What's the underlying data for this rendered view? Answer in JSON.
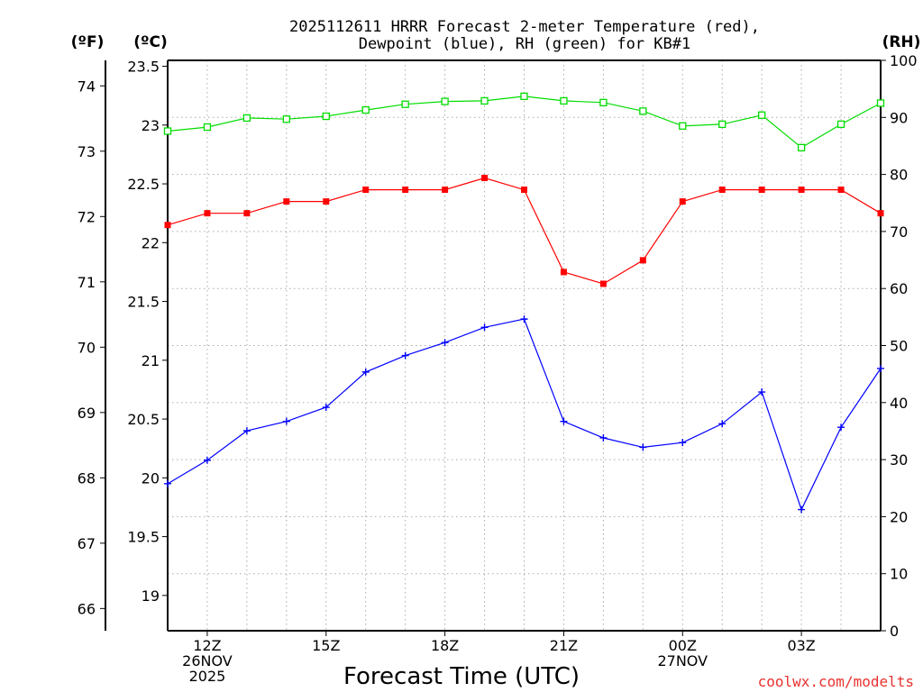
{
  "chart_data": {
    "type": "line",
    "title": [
      "2025112611 HRRR Forecast 2-meter Temperature (red),",
      "Dewpoint (blue), RH (green) for KB#1"
    ],
    "xlabel": "Forecast Time (UTC)",
    "units": {
      "fahrenheit": "(ºF)",
      "celsius": "(ºC)",
      "rh": "(RH)"
    },
    "x_hours": [
      11,
      12,
      13,
      14,
      15,
      16,
      17,
      18,
      19,
      20,
      21,
      22,
      23,
      24,
      25,
      26,
      27,
      28,
      29
    ],
    "xlim": [
      11,
      29
    ],
    "celsius_lim": [
      18.7,
      23.55
    ],
    "fahrenheit_lim": [
      65.66,
      74.39
    ],
    "rh_lim": [
      0,
      100
    ],
    "x_ticks": [
      {
        "x": 12,
        "lines": [
          "12Z",
          "26NOV",
          "2025"
        ]
      },
      {
        "x": 15,
        "lines": [
          "15Z"
        ]
      },
      {
        "x": 18,
        "lines": [
          "18Z"
        ]
      },
      {
        "x": 21,
        "lines": [
          "21Z"
        ]
      },
      {
        "x": 24,
        "lines": [
          "00Z",
          "27NOV"
        ]
      },
      {
        "x": 27,
        "lines": [
          "03Z"
        ]
      }
    ],
    "celsius_ticks": [
      "19",
      "19.5",
      "20",
      "20.5",
      "21",
      "21.5",
      "22",
      "22.5",
      "23",
      "23.5"
    ],
    "fahrenheit_ticks": [
      "66",
      "67",
      "68",
      "69",
      "70",
      "71",
      "72",
      "73",
      "74"
    ],
    "rh_ticks": [
      "0",
      "10",
      "20",
      "30",
      "40",
      "50",
      "60",
      "70",
      "80",
      "90",
      "100"
    ],
    "series": [
      {
        "name": "Temperature",
        "axis": "celsius",
        "color": "#ff0000",
        "marker": "filled-square",
        "values": [
          22.15,
          22.25,
          22.25,
          22.35,
          22.35,
          22.45,
          22.45,
          22.45,
          22.55,
          22.45,
          21.75,
          21.65,
          21.85,
          22.35,
          22.45,
          22.45,
          22.45,
          22.45,
          22.25
        ]
      },
      {
        "name": "Dewpoint",
        "axis": "celsius",
        "color": "#0000ff",
        "marker": "plus",
        "values": [
          19.95,
          20.15,
          20.4,
          20.48,
          20.6,
          20.9,
          21.04,
          21.15,
          21.28,
          21.35,
          20.48,
          20.34,
          20.26,
          20.3,
          20.46,
          20.73,
          19.73,
          20.43,
          20.93
        ]
      },
      {
        "name": "Relative Humidity",
        "axis": "rh",
        "color": "#00dd00",
        "marker": "open-square",
        "values": [
          87.6,
          88.3,
          89.9,
          89.7,
          90.2,
          91.3,
          92.3,
          92.8,
          92.9,
          93.7,
          92.9,
          92.6,
          91.1,
          88.5,
          88.8,
          90.4,
          84.7,
          88.8,
          92.5
        ]
      }
    ]
  },
  "credit": "coolwx.com/modelts"
}
